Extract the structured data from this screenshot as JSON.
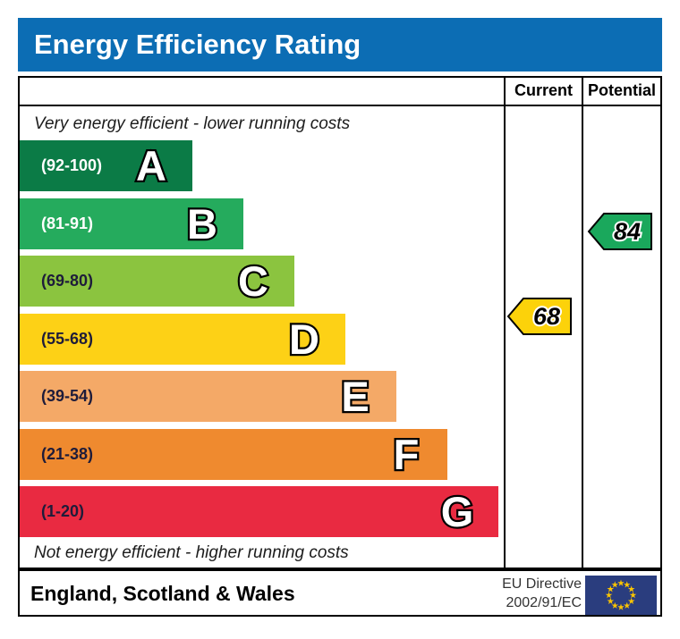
{
  "title": "Energy Efficiency Rating",
  "table": {
    "current_label": "Current",
    "potential_label": "Potential"
  },
  "captions": {
    "top": "Very energy efficient - lower running costs",
    "bottom": "Not energy efficient - higher running costs"
  },
  "bands": [
    {
      "letter": "A",
      "range": "(92-100)",
      "color": "#0b7b46",
      "range_text_color": "#ffffff"
    },
    {
      "letter": "B",
      "range": "(81-91)",
      "color": "#25ab5d",
      "range_text_color": "#ffffff"
    },
    {
      "letter": "C",
      "range": "(69-80)",
      "color": "#8bc43f",
      "range_text_color": "#1e1c3a"
    },
    {
      "letter": "D",
      "range": "(55-68)",
      "color": "#fdd116",
      "range_text_color": "#1e1c3a"
    },
    {
      "letter": "E",
      "range": "(39-54)",
      "color": "#f4a967",
      "range_text_color": "#1e1c3a"
    },
    {
      "letter": "F",
      "range": "(21-38)",
      "color": "#ef8a2f",
      "range_text_color": "#1e1c3a"
    },
    {
      "letter": "G",
      "range": "(1-20)",
      "color": "#e92a41",
      "range_text_color": "#1e1c3a"
    }
  ],
  "ratings": {
    "current": {
      "value": "68",
      "band": "D",
      "arrow_color": "#fcd20a"
    },
    "potential": {
      "value": "84",
      "band": "B",
      "arrow_color": "#1aa85c"
    }
  },
  "footer": {
    "region": "England, Scotland & Wales",
    "directive_line1": "EU Directive",
    "directive_line2": "2002/91/EC"
  },
  "colors": {
    "header_bg": "#0c6db4",
    "header_text": "#ffffff",
    "border": "#000000",
    "eu_flag_bg": "#2a3d7e",
    "eu_flag_stars": "#fcc500"
  },
  "chart_data": {
    "type": "bar",
    "title": "Energy Efficiency Rating",
    "categories": [
      "A",
      "B",
      "C",
      "D",
      "E",
      "F",
      "G"
    ],
    "band_ranges": [
      "92-100",
      "81-91",
      "69-80",
      "55-68",
      "39-54",
      "21-38",
      "1-20"
    ],
    "band_colors": [
      "#0b7b46",
      "#25ab5d",
      "#8bc43f",
      "#fdd116",
      "#f4a967",
      "#ef8a2f",
      "#e92a41"
    ],
    "values": {
      "current": 68,
      "current_band": "D",
      "potential": 84,
      "potential_band": "B"
    },
    "annotations": [
      "Very energy efficient - lower running costs",
      "Not energy efficient - higher running costs"
    ],
    "legend_columns": [
      "Current",
      "Potential"
    ],
    "footer_region": "England, Scotland & Wales",
    "footer_directive": "EU Directive 2002/91/EC"
  }
}
